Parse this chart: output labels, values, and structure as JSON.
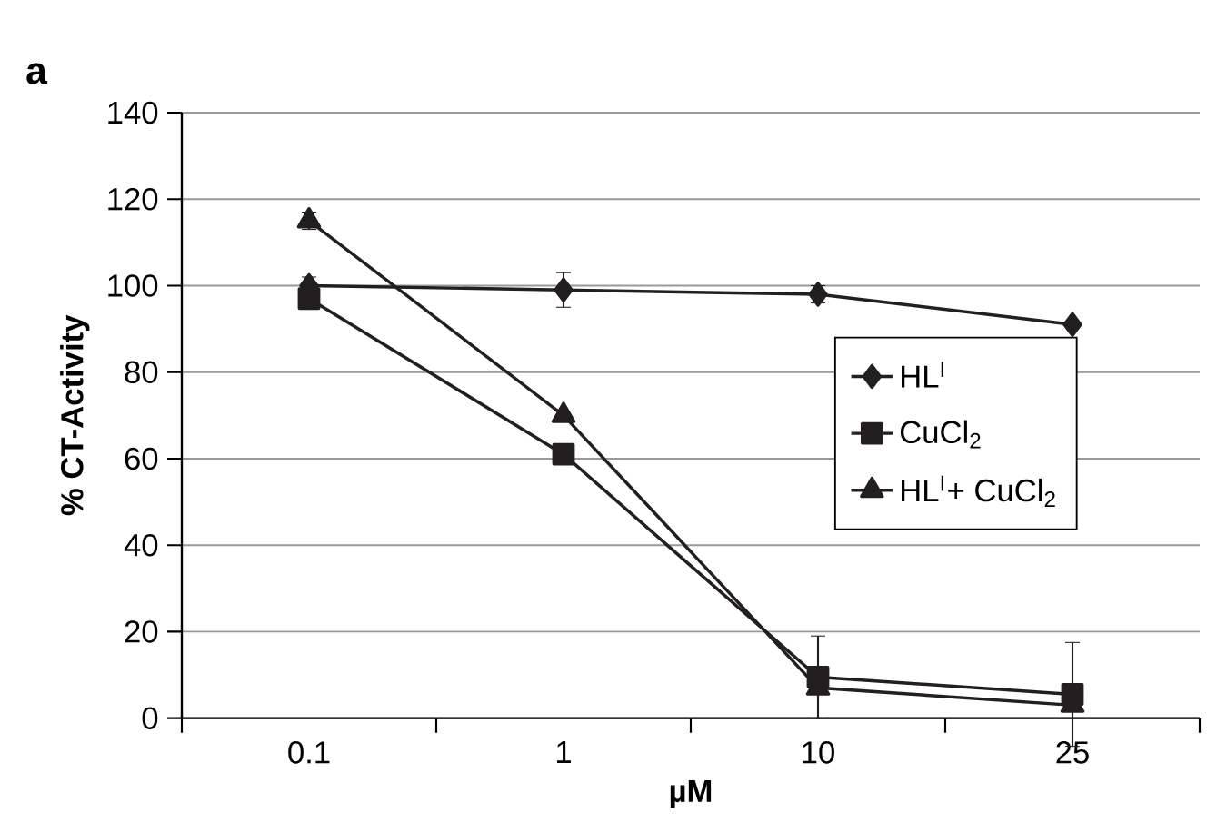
{
  "chart_data": {
    "type": "line",
    "xlabel": "µM",
    "ylabel": "% CT-Activity",
    "annotations": [
      "a"
    ],
    "categories": [
      "0.1",
      "1",
      "10",
      "25"
    ],
    "series": [
      {
        "name": "HL$^{I}$",
        "color": "#231f20",
        "marker": "diamond",
        "values": [
          100,
          99,
          98,
          91
        ],
        "errors": [
          2,
          4,
          2,
          null
        ]
      },
      {
        "name": "CuCl$_{2}$",
        "color": "#231f20",
        "marker": "square",
        "values": [
          97,
          61,
          9.5,
          5.5
        ],
        "errors": [
          null,
          null,
          9.5,
          12
        ]
      },
      {
        "name": "HL$^{I}$+ CuCl$_{2}$",
        "color": "#231f20",
        "marker": "triangle",
        "values": [
          115,
          70,
          7,
          3
        ],
        "errors": [
          2,
          null,
          null,
          null
        ]
      }
    ],
    "ylim": [
      0,
      140
    ],
    "yticks": [
      0,
      20,
      40,
      60,
      80,
      100,
      120,
      140
    ],
    "grid": "y",
    "legend": "right"
  }
}
